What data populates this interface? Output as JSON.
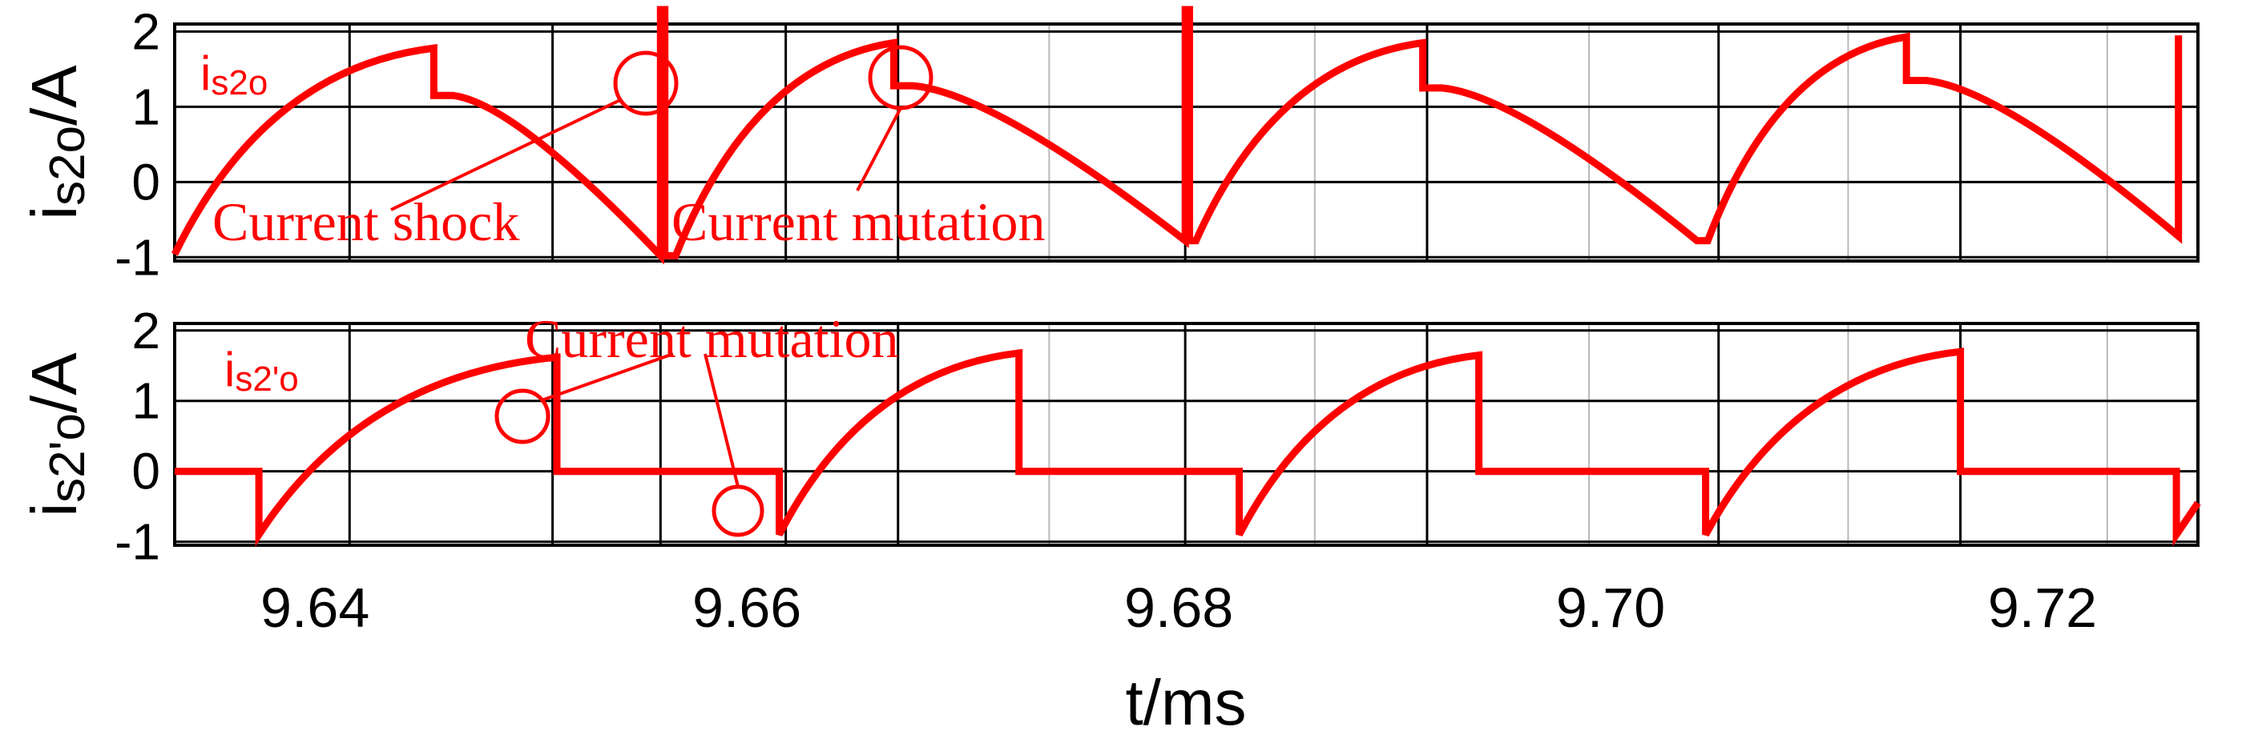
{
  "chart_data": [
    {
      "type": "line",
      "panel": "top",
      "ylabel_main": "i",
      "ylabel_sub": "s2o",
      "ylabel_unit": "/A",
      "series_label_main": "i",
      "series_label_sub": "s2o",
      "ylim": [
        -1.05,
        2.1
      ],
      "xlim": [
        9.6335,
        9.7272
      ],
      "yticks": [
        -1,
        0,
        1,
        2
      ],
      "ytick_labels": [
        "-1",
        "0",
        "1",
        "2"
      ],
      "grid": true,
      "series": [
        {
          "color": "#ff0000",
          "x": [
            9.6335,
            9.6455,
            9.6455,
            9.6464,
            9.656,
            9.656,
            9.6562,
            9.6562,
            9.6567,
            9.6668,
            9.6668,
            9.6677,
            9.6803,
            9.6803,
            9.6805,
            9.6805,
            9.6808,
            9.6913,
            9.6913,
            9.6922,
            9.704,
            9.7045,
            9.7137,
            9.7137,
            9.7146,
            9.7263,
            9.7263
          ],
          "y": [
            -0.96,
            1.78,
            1.15,
            1.15,
            -0.98,
            2.4,
            2.4,
            -0.98,
            -0.98,
            1.85,
            1.28,
            1.28,
            -0.78,
            2.4,
            2.4,
            -0.78,
            -0.78,
            1.85,
            1.25,
            1.25,
            -0.78,
            -0.78,
            1.93,
            1.35,
            1.35,
            -0.72,
            1.95
          ]
        }
      ],
      "annotations": [
        {
          "text": "Current shock",
          "x": 9.6557,
          "y": 1.3
        },
        {
          "text": "Current mutation",
          "x": 9.6672,
          "y": 1.45
        }
      ]
    },
    {
      "type": "line",
      "panel": "bottom",
      "ylabel_main": "i",
      "ylabel_sub": "s2'o",
      "ylabel_unit": "/A",
      "series_label_main": "i",
      "series_label_sub": "s2'o",
      "xlabel": "t/ms",
      "ylim": [
        -1.05,
        2.1
      ],
      "xlim": [
        9.6335,
        9.7272
      ],
      "yticks": [
        -1,
        0,
        1,
        2
      ],
      "ytick_labels": [
        "-1",
        "0",
        "1",
        "2"
      ],
      "xticks": [
        9.64,
        9.66,
        9.68,
        9.7,
        9.72
      ],
      "xtick_labels": [
        "9.64",
        "9.66",
        "9.68",
        "9.70",
        "9.72"
      ],
      "grid": true,
      "series": [
        {
          "color": "#ff0000",
          "x": [
            9.6335,
            9.6374,
            9.6374,
            9.6512,
            9.6512,
            9.6615,
            9.6615,
            9.6726,
            9.6726,
            9.6828,
            9.6828,
            9.6939,
            9.6939,
            9.7044,
            9.7044,
            9.7162,
            9.7162,
            9.7262,
            9.7262,
            9.7272
          ],
          "y": [
            0,
            0,
            -0.9,
            1.62,
            0,
            0,
            -0.9,
            1.68,
            0,
            0,
            -0.9,
            1.65,
            0,
            0,
            -0.9,
            1.7,
            0,
            0,
            -0.9,
            -0.45
          ]
        }
      ],
      "annotations": [
        {
          "text": "Current mutation",
          "x": 9.6595,
          "y": 1.95
        }
      ]
    }
  ]
}
